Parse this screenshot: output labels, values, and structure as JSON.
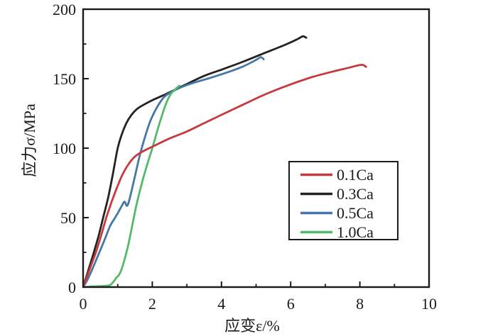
{
  "figure": {
    "background": "#ffffff",
    "frame_color": "#1a1a1a",
    "text_color": "#1a1a1a"
  },
  "chart_data": {
    "type": "line",
    "title": "",
    "xlabel": "应变ε/%",
    "ylabel": "应力σ/MPa",
    "xlim": [
      0,
      10
    ],
    "ylim": [
      0,
      200
    ],
    "x_major_ticks": [
      0,
      2,
      4,
      6,
      8,
      10
    ],
    "x_minor_ticks": [
      1,
      3,
      5,
      7,
      9
    ],
    "y_major_ticks": [
      0,
      50,
      100,
      150,
      200
    ],
    "y_minor_ticks": [
      25,
      75,
      125,
      175
    ],
    "grid": false,
    "frame": true,
    "legend_position": "center-right",
    "legend_labels": [
      "0.1Ca",
      "0.3Ca",
      "0.5Ca",
      "1.0Ca"
    ],
    "series": [
      {
        "name": "0.1Ca",
        "color": "#c63a3e",
        "points": [
          [
            0,
            0
          ],
          [
            0.12,
            8
          ],
          [
            0.25,
            17
          ],
          [
            0.37,
            25
          ],
          [
            0.52,
            37
          ],
          [
            0.67,
            50
          ],
          [
            0.82,
            61
          ],
          [
            0.97,
            71
          ],
          [
            1.12,
            80
          ],
          [
            1.3,
            88
          ],
          [
            1.5,
            94
          ],
          [
            1.75,
            98
          ],
          [
            2.0,
            101
          ],
          [
            2.5,
            107
          ],
          [
            3.0,
            112
          ],
          [
            3.5,
            118
          ],
          [
            4.0,
            124
          ],
          [
            4.6,
            131
          ],
          [
            5.2,
            138
          ],
          [
            5.9,
            145
          ],
          [
            6.6,
            151
          ],
          [
            7.2,
            155
          ],
          [
            7.7,
            158
          ],
          [
            8.05,
            160
          ],
          [
            8.18,
            158.5
          ]
        ]
      },
      {
        "name": "0.3Ca",
        "color": "#232323",
        "points": [
          [
            0,
            0
          ],
          [
            0.15,
            12
          ],
          [
            0.31,
            25
          ],
          [
            0.45,
            37
          ],
          [
            0.58,
            50
          ],
          [
            0.72,
            64
          ],
          [
            0.85,
            80
          ],
          [
            1.0,
            100
          ],
          [
            1.12,
            110
          ],
          [
            1.25,
            118
          ],
          [
            1.4,
            124
          ],
          [
            1.55,
            128
          ],
          [
            1.7,
            130.5
          ],
          [
            2.0,
            134.5
          ],
          [
            2.4,
            139
          ],
          [
            2.9,
            145
          ],
          [
            3.5,
            152
          ],
          [
            4.0,
            156.5
          ],
          [
            4.6,
            162
          ],
          [
            5.2,
            168
          ],
          [
            5.8,
            174
          ],
          [
            6.2,
            178.5
          ],
          [
            6.35,
            180.5
          ],
          [
            6.45,
            179.5
          ]
        ]
      },
      {
        "name": "0.5Ca",
        "color": "#4577a7",
        "points": [
          [
            0,
            0
          ],
          [
            0.12,
            5
          ],
          [
            0.25,
            12
          ],
          [
            0.47,
            25
          ],
          [
            0.62,
            34
          ],
          [
            0.78,
            44
          ],
          [
            0.9,
            49
          ],
          [
            1.02,
            54
          ],
          [
            1.13,
            59
          ],
          [
            1.2,
            61.5
          ],
          [
            1.27,
            58.5
          ],
          [
            1.35,
            64
          ],
          [
            1.5,
            80
          ],
          [
            1.65,
            96
          ],
          [
            1.8,
            109
          ],
          [
            1.95,
            120
          ],
          [
            2.15,
            130
          ],
          [
            2.35,
            137
          ],
          [
            2.6,
            141
          ],
          [
            2.9,
            144.5
          ],
          [
            3.25,
            147.5
          ],
          [
            3.6,
            150
          ],
          [
            4.1,
            154
          ],
          [
            4.6,
            158.5
          ],
          [
            5.0,
            163.5
          ],
          [
            5.13,
            165.5
          ],
          [
            5.22,
            164
          ]
        ]
      },
      {
        "name": "1.0Ca",
        "color": "#55b96a",
        "points": [
          [
            0,
            0
          ],
          [
            0.3,
            0.5
          ],
          [
            0.6,
            0.8
          ],
          [
            0.78,
            1.5
          ],
          [
            0.88,
            4
          ],
          [
            0.97,
            7
          ],
          [
            1.03,
            8.5
          ],
          [
            1.1,
            12
          ],
          [
            1.2,
            20
          ],
          [
            1.32,
            32
          ],
          [
            1.45,
            48
          ],
          [
            1.55,
            60
          ],
          [
            1.7,
            75
          ],
          [
            1.85,
            88
          ],
          [
            2.0,
            100
          ],
          [
            2.15,
            113
          ],
          [
            2.3,
            125
          ],
          [
            2.42,
            133.5
          ],
          [
            2.55,
            139.5
          ],
          [
            2.67,
            142.5
          ],
          [
            2.78,
            145
          ]
        ]
      }
    ]
  }
}
